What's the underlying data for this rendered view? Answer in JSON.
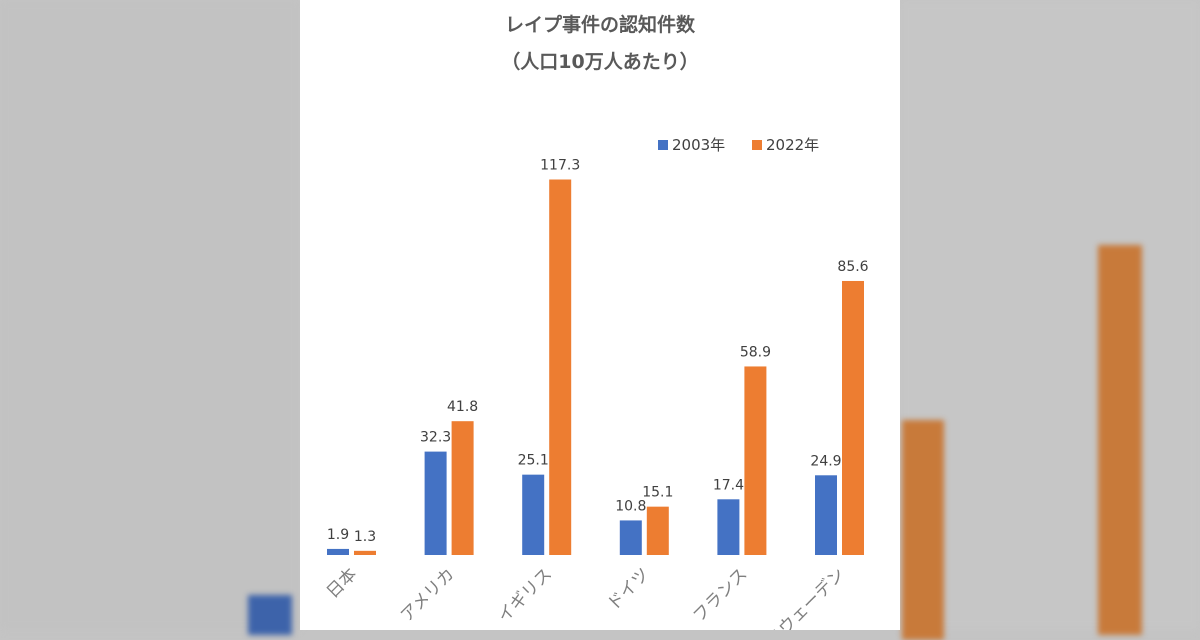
{
  "chart_data": {
    "type": "bar",
    "title": "レイプ事件の認知件数",
    "subtitle": "（人口10万人あたり）",
    "categories": [
      "日本",
      "アメリカ",
      "イギリス",
      "ドイツ",
      "フランス",
      "スウェーデン"
    ],
    "series": [
      {
        "name": "2003年",
        "color": "#4472c4",
        "values": [
          1.9,
          32.3,
          25.1,
          10.8,
          17.4,
          24.9
        ],
        "labels": [
          "1.9",
          "32.3",
          "25.1",
          "10.8",
          "17.4",
          "24.9"
        ]
      },
      {
        "name": "2022年",
        "color": "#ed7d31",
        "values": [
          1.3,
          41.8,
          117.3,
          15.1,
          58.9,
          85.6
        ],
        "labels": [
          "1.3",
          "41.8",
          "117.3",
          "15.1",
          "58.9",
          "85.6"
        ]
      }
    ],
    "xlabel": "",
    "ylabel": "",
    "ylim": [
      0,
      120
    ],
    "grid": false,
    "legend": "top-right"
  }
}
